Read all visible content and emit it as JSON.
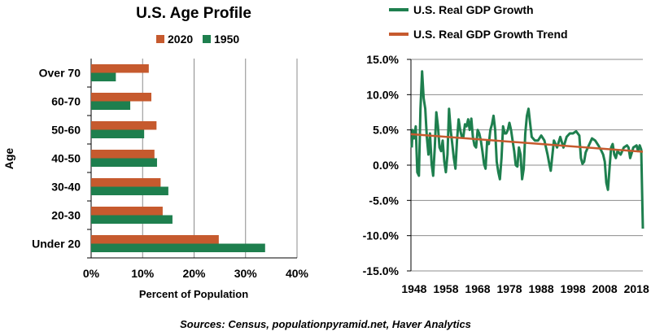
{
  "chart_data": [
    {
      "type": "bar",
      "orientation": "horizontal",
      "title": "U.S. Age Profile",
      "xlabel": "Percent of Population",
      "ylabel": "Age",
      "xlim": [
        0,
        40
      ],
      "x_ticks": [
        "0%",
        "10%",
        "20%",
        "30%",
        "40%"
      ],
      "grid": true,
      "legend_position": "top",
      "categories": [
        "Over 70",
        "60-70",
        "50-60",
        "40-50",
        "30-40",
        "20-30",
        "Under 20"
      ],
      "series": [
        {
          "name": "2020",
          "color": "#C65A2E",
          "values": [
            11.2,
            11.7,
            12.7,
            12.3,
            13.5,
            13.9,
            24.8
          ]
        },
        {
          "name": "1950",
          "color": "#1E7F4E",
          "values": [
            4.8,
            7.6,
            10.3,
            12.8,
            15.0,
            15.8,
            33.8
          ]
        }
      ]
    },
    {
      "type": "line",
      "xlim": [
        1947,
        2020
      ],
      "ylim": [
        -15,
        15
      ],
      "x_ticks": [
        "1948",
        "1958",
        "1968",
        "1978",
        "1988",
        "1998",
        "2008",
        "2018"
      ],
      "y_ticks": [
        "15.0%",
        "10.0%",
        "5.0%",
        "0.0%",
        "-5.0%",
        "-10.0%",
        "-15.0%"
      ],
      "grid": true,
      "legend_position": "top",
      "series": [
        {
          "name": "U.S. Real GDP Growth",
          "color": "#1E7F4E",
          "x": [
            1947.25,
            1947.5,
            1948,
            1948.5,
            1949,
            1949.5,
            1950,
            1950.5,
            1951,
            1951.5,
            1952,
            1952.5,
            1953,
            1953.5,
            1954,
            1954.5,
            1955,
            1955.5,
            1956,
            1956.5,
            1957,
            1957.5,
            1958,
            1958.5,
            1959,
            1959.5,
            1960,
            1960.5,
            1961,
            1961.5,
            1962,
            1962.5,
            1963,
            1963.5,
            1964,
            1964.5,
            1965,
            1965.5,
            1966,
            1966.5,
            1967,
            1967.5,
            1968,
            1968.5,
            1969,
            1969.5,
            1970,
            1970.5,
            1971,
            1971.5,
            1972,
            1972.5,
            1973,
            1973.5,
            1974,
            1974.5,
            1975,
            1975.5,
            1976,
            1976.5,
            1977,
            1977.5,
            1978,
            1978.5,
            1979,
            1979.5,
            1980,
            1980.5,
            1981,
            1981.5,
            1982,
            1982.5,
            1983,
            1983.5,
            1984,
            1984.5,
            1985,
            1986,
            1987,
            1988,
            1989,
            1990,
            1990.5,
            1991,
            1992,
            1993,
            1994,
            1995,
            1996,
            1997,
            1998,
            1999,
            2000,
            2000.5,
            2001,
            2001.5,
            2002,
            2003,
            2004,
            2005,
            2006,
            2007,
            2007.5,
            2008,
            2008.5,
            2009,
            2009.5,
            2010,
            2010.5,
            2011,
            2011.5,
            2012,
            2013,
            2014,
            2015,
            2015.5,
            2016,
            2017,
            2018,
            2018.5,
            2019,
            2019.5,
            2020
          ],
          "y": [
            2.5,
            5.0,
            3.8,
            5.5,
            -1.0,
            -1.5,
            8.0,
            13.3,
            9.5,
            8.0,
            4.0,
            1.5,
            4.5,
            0.2,
            -1.5,
            2.5,
            7.5,
            5.5,
            2.5,
            2.0,
            3.5,
            0.5,
            -1.0,
            1.5,
            8.0,
            5.0,
            3.0,
            1.0,
            -0.5,
            3.5,
            6.5,
            5.0,
            4.0,
            4.0,
            5.8,
            5.5,
            6.5,
            5.0,
            6.6,
            4.0,
            2.8,
            2.5,
            5.0,
            4.5,
            3.5,
            2.0,
            0.2,
            -0.5,
            3.5,
            3.0,
            5.0,
            5.8,
            7.0,
            5.0,
            0.5,
            -1.0,
            -2.0,
            1.0,
            5.5,
            4.5,
            4.5,
            5.0,
            6.0,
            5.0,
            3.5,
            2.0,
            0.0,
            -0.2,
            2.5,
            1.5,
            -2.0,
            -0.5,
            4.5,
            7.0,
            8.0,
            6.0,
            4.0,
            3.5,
            3.5,
            4.2,
            3.5,
            1.5,
            0.3,
            -0.8,
            3.5,
            2.5,
            4.0,
            2.5,
            4.0,
            4.5,
            4.5,
            4.8,
            4.2,
            1.0,
            0.2,
            0.5,
            1.8,
            2.8,
            3.8,
            3.5,
            2.8,
            2.0,
            1.5,
            0.5,
            -2.5,
            -3.5,
            -0.5,
            2.5,
            3.0,
            1.5,
            1.0,
            2.0,
            1.5,
            2.5,
            2.8,
            2.5,
            1.0,
            2.5,
            2.8,
            2.0,
            2.8,
            2.2,
            -9.0
          ]
        },
        {
          "name": "U.S. Real GDP Growth Trend",
          "color": "#C65A2E",
          "x": [
            1947,
            2020
          ],
          "y": [
            4.4,
            1.9
          ]
        }
      ]
    }
  ],
  "sources": "Sources: Census, populationpyramid.net, Haver Analytics"
}
